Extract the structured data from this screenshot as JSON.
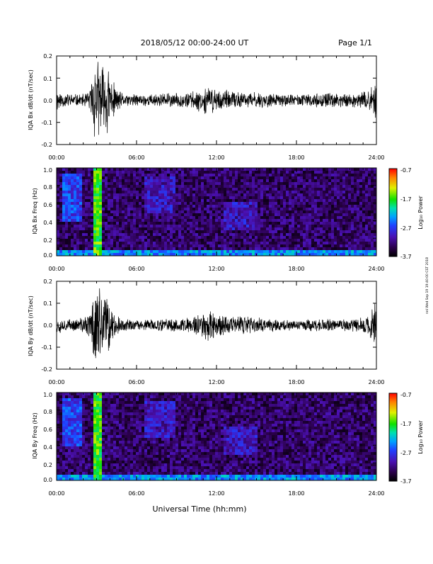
{
  "header": {
    "title": "2018/05/12  00:00-24:00 UT",
    "page_label": "Page 1/1"
  },
  "footer": {
    "xlabel": "Universal Time (hh:mm)",
    "side_stamp": "nnl Wed Sep 19 19:40:00 CST 2018"
  },
  "chart_data": [
    {
      "type": "line",
      "title": "",
      "xlabel": "",
      "ylabel": "IQA Bx dB/dt (nT/sec)",
      "xlim": [
        "00:00",
        "24:00"
      ],
      "x_ticks": [
        "00:00",
        "06:00",
        "12:00",
        "18:00",
        "24:00"
      ],
      "ylim": [
        -0.2,
        0.2
      ],
      "y_ticks": [
        "0.2",
        "0.1",
        "0.0",
        "-0.1",
        "-0.2"
      ],
      "series": [
        {
          "x_hours": [
            0,
            0.5,
            1,
            1.5,
            2,
            2.5,
            2.8,
            3,
            3.2,
            3.5,
            3.8,
            4,
            4.5,
            5,
            6,
            7,
            8,
            9,
            10,
            10.5,
            11,
            11.5,
            12,
            12.5,
            13,
            14,
            15,
            16,
            17,
            18,
            19,
            20,
            21,
            22,
            23,
            23.5,
            24
          ],
          "amplitude": [
            0.06,
            0.035,
            0.035,
            0.03,
            0.03,
            0.05,
            0.2,
            0.2,
            0.2,
            0.17,
            0.2,
            0.12,
            0.06,
            0.03,
            0.03,
            0.03,
            0.035,
            0.035,
            0.04,
            0.05,
            0.06,
            0.07,
            0.06,
            0.05,
            0.045,
            0.04,
            0.04,
            0.035,
            0.03,
            0.03,
            0.03,
            0.035,
            0.035,
            0.035,
            0.04,
            0.05,
            0.1
          ]
        }
      ]
    },
    {
      "type": "heatmap",
      "title": "",
      "xlabel": "",
      "ylabel": "IQA Bx Freq (Hz)",
      "xlim": [
        "00:00",
        "24:00"
      ],
      "x_ticks": [
        "00:00",
        "06:00",
        "12:00",
        "18:00",
        "24:00"
      ],
      "ylim": [
        0.0,
        1.0
      ],
      "y_ticks": [
        "1.0",
        "0.8",
        "0.6",
        "0.4",
        "0.2",
        "0.0"
      ],
      "colorbar": {
        "label": "Log₁₀ Power",
        "range": [
          -3.7,
          -0.7
        ],
        "ticks": [
          "-0.7",
          "-1.7",
          "-2.7",
          "-3.7"
        ]
      },
      "features": [
        {
          "x_hours": [
            0.4,
            2.0
          ],
          "freq_hz": [
            0.4,
            0.95
          ],
          "level": -2.5
        },
        {
          "x_hours": [
            2.7,
            3.3
          ],
          "freq_hz": [
            0.0,
            1.0
          ],
          "level": -1.5
        },
        {
          "x_hours": [
            0.0,
            24.0
          ],
          "freq_hz": [
            0.0,
            0.05
          ],
          "level": -2.2
        },
        {
          "x_hours": [
            6.5,
            9.0
          ],
          "freq_hz": [
            0.5,
            0.9
          ],
          "level": -2.8
        },
        {
          "x_hours": [
            12.5,
            15.0
          ],
          "freq_hz": [
            0.3,
            0.6
          ],
          "level": -2.8
        }
      ]
    },
    {
      "type": "line",
      "title": "",
      "xlabel": "",
      "ylabel": "IQA By dB/dt (nT/sec)",
      "xlim": [
        "00:00",
        "24:00"
      ],
      "x_ticks": [
        "00:00",
        "06:00",
        "12:00",
        "18:00",
        "24:00"
      ],
      "ylim": [
        -0.2,
        0.2
      ],
      "y_ticks": [
        "0.2",
        "0.1",
        "0.0",
        "-0.1",
        "-0.2"
      ],
      "series": [
        {
          "x_hours": [
            0,
            0.5,
            1,
            1.5,
            2,
            2.5,
            2.8,
            3,
            3.2,
            3.5,
            3.8,
            4,
            4.5,
            5,
            6,
            7,
            8,
            9,
            10,
            10.5,
            11,
            11.5,
            12,
            12.5,
            13,
            14,
            15,
            16,
            17,
            18,
            19,
            20,
            21,
            22,
            23,
            23.5,
            24
          ],
          "amplitude": [
            0.05,
            0.03,
            0.03,
            0.03,
            0.04,
            0.07,
            0.2,
            0.2,
            0.2,
            0.15,
            0.2,
            0.1,
            0.05,
            0.03,
            0.025,
            0.03,
            0.03,
            0.035,
            0.04,
            0.055,
            0.07,
            0.08,
            0.07,
            0.06,
            0.05,
            0.045,
            0.04,
            0.035,
            0.03,
            0.03,
            0.03,
            0.03,
            0.03,
            0.03,
            0.04,
            0.06,
            0.12
          ]
        }
      ]
    },
    {
      "type": "heatmap",
      "title": "",
      "xlabel": "",
      "ylabel": "IQA By Freq (Hz)",
      "xlim": [
        "00:00",
        "24:00"
      ],
      "x_ticks": [
        "00:00",
        "06:00",
        "12:00",
        "18:00",
        "24:00"
      ],
      "ylim": [
        0.0,
        1.0
      ],
      "y_ticks": [
        "1.0",
        "0.8",
        "0.6",
        "0.4",
        "0.2",
        "0.0"
      ],
      "colorbar": {
        "label": "Log₁₀ Power",
        "range": [
          -3.7,
          -0.7
        ],
        "ticks": [
          "-0.7",
          "-1.7",
          "-2.7",
          "-3.7"
        ]
      },
      "features": [
        {
          "x_hours": [
            0.4,
            2.0
          ],
          "freq_hz": [
            0.4,
            0.95
          ],
          "level": -2.5
        },
        {
          "x_hours": [
            2.7,
            3.3
          ],
          "freq_hz": [
            0.0,
            1.0
          ],
          "level": -1.5
        },
        {
          "x_hours": [
            0.0,
            24.0
          ],
          "freq_hz": [
            0.0,
            0.05
          ],
          "level": -2.2
        },
        {
          "x_hours": [
            6.5,
            9.0
          ],
          "freq_hz": [
            0.5,
            0.9
          ],
          "level": -2.8
        },
        {
          "x_hours": [
            12.5,
            15.0
          ],
          "freq_hz": [
            0.3,
            0.6
          ],
          "level": -2.8
        }
      ]
    }
  ]
}
